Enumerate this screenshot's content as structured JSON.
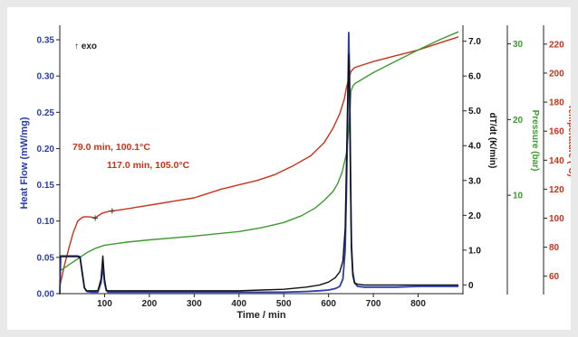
{
  "chart_data": {
    "type": "line",
    "title": "",
    "exo_label": "↑ exo",
    "xlabel": "Time / min",
    "xlim": [
      0,
      900
    ],
    "x_ticks": [
      100,
      200,
      300,
      400,
      500,
      600,
      700,
      800
    ],
    "axes": {
      "heat_flow": {
        "label": "Heat Flow (mW/mg)",
        "color": "#2a3ea8",
        "range": [
          0,
          0.36
        ],
        "ticks": [
          "0.00",
          "0.05",
          "0.10",
          "0.15",
          "0.20",
          "0.25",
          "0.30",
          "0.35"
        ]
      },
      "dtdt": {
        "label": "dT/dt (K/min)",
        "color": "#111111",
        "range": [
          -0.25,
          7.25
        ],
        "ticks": [
          "0",
          "1.0",
          "2.0",
          "3.0",
          "4.0",
          "5.0",
          "6.0",
          "7.0"
        ]
      },
      "pressure": {
        "label": "Pressure (bar)",
        "color": "#3d9a2f",
        "range": [
          -3,
          31.5
        ],
        "ticks": [
          "10",
          "20",
          "30"
        ]
      },
      "temperature": {
        "label": "Temperature (°C)",
        "color": "#c8321a",
        "range": [
          48,
          228
        ],
        "ticks": [
          "60",
          "80",
          "100",
          "120",
          "140",
          "160",
          "180",
          "200",
          "220"
        ]
      }
    },
    "series": [
      {
        "axis": "temperature",
        "color": "#c8321a",
        "x": [
          0,
          10,
          20,
          30,
          40,
          50,
          55,
          60,
          70,
          79,
          85,
          95,
          110,
          117,
          140,
          180,
          220,
          260,
          300,
          315,
          330,
          360,
          400,
          440,
          480,
          520,
          560,
          590,
          610,
          625,
          635,
          640,
          645,
          648,
          650,
          655,
          660,
          700,
          750,
          800,
          850,
          890
        ],
        "y": [
          53,
          67,
          79,
          90,
          98,
          100.5,
          101,
          101,
          100.8,
          100.1,
          101.5,
          103.5,
          104.8,
          105,
          106,
          108,
          110,
          112,
          114,
          115.5,
          117,
          120,
          123,
          126,
          130,
          136,
          143,
          152,
          162,
          172,
          182,
          190,
          196,
          199,
          201,
          203,
          204,
          208,
          212,
          216,
          221,
          225
        ]
      },
      {
        "axis": "pressure",
        "color": "#3d9a2f",
        "x": [
          0,
          20,
          40,
          60,
          80,
          100,
          150,
          200,
          300,
          400,
          450,
          500,
          540,
          570,
          590,
          610,
          620,
          630,
          640,
          645,
          648,
          650,
          655,
          660,
          700,
          750,
          800,
          850,
          890
        ],
        "y": [
          0,
          0.8,
          1.6,
          2.4,
          3,
          3.4,
          3.8,
          4.1,
          4.6,
          5.2,
          5.7,
          6.4,
          7.3,
          8.3,
          9.3,
          10.5,
          11.5,
          13,
          15.5,
          18.5,
          21.5,
          23.8,
          24.5,
          24.8,
          26.2,
          27.7,
          29.2,
          30.6,
          31.6
        ]
      },
      {
        "axis": "heat_flow",
        "color": "#2a3ea8",
        "x": [
          0,
          2,
          5,
          10,
          20,
          30,
          40,
          45,
          50,
          55,
          60,
          70,
          85,
          92,
          96,
          100,
          104,
          108,
          115,
          150,
          200,
          300,
          400,
          500,
          550,
          580,
          600,
          615,
          625,
          632,
          637,
          640,
          643,
          645,
          647,
          649,
          651,
          654,
          658,
          665,
          680,
          700,
          750,
          800,
          850,
          890
        ],
        "y": [
          0,
          0.052,
          0.052,
          0.052,
          0.052,
          0.052,
          0.052,
          0.051,
          0.03,
          0.008,
          0.003,
          0.002,
          0.002,
          0.015,
          0.038,
          0.015,
          0.004,
          0.002,
          0.002,
          0.002,
          0.002,
          0.002,
          0.002,
          0.002,
          0.003,
          0.004,
          0.005,
          0.007,
          0.01,
          0.02,
          0.06,
          0.14,
          0.25,
          0.36,
          0.3,
          0.17,
          0.07,
          0.03,
          0.015,
          0.01,
          0.009,
          0.009,
          0.009,
          0.01,
          0.01,
          0.01
        ]
      },
      {
        "axis": "heat_flow",
        "color": "#111111",
        "x": [
          0,
          5,
          10,
          30,
          40,
          45,
          50,
          55,
          60,
          70,
          85,
          92,
          96,
          100,
          104,
          108,
          115,
          150,
          200,
          300,
          400,
          450,
          500,
          550,
          580,
          600,
          615,
          625,
          632,
          637,
          640,
          643,
          645,
          647,
          649,
          651,
          654,
          658,
          665,
          680,
          700,
          750,
          800,
          850,
          890
        ],
        "y": [
          0.051,
          0.051,
          0.051,
          0.051,
          0.051,
          0.05,
          0.028,
          0.008,
          0.004,
          0.004,
          0.004,
          0.02,
          0.052,
          0.02,
          0.005,
          0.004,
          0.004,
          0.004,
          0.004,
          0.004,
          0.004,
          0.005,
          0.006,
          0.009,
          0.012,
          0.016,
          0.022,
          0.03,
          0.045,
          0.09,
          0.18,
          0.28,
          0.33,
          0.27,
          0.15,
          0.06,
          0.025,
          0.015,
          0.013,
          0.012,
          0.012,
          0.012,
          0.012,
          0.012,
          0.012
        ]
      }
    ],
    "annotations": [
      {
        "text": "79.0 min, 100.1°C",
        "x": 79,
        "y": 100.1,
        "axis": "temperature"
      },
      {
        "text": "117.0 min, 105.0°C",
        "x": 117,
        "y": 105.0,
        "axis": "temperature"
      }
    ]
  }
}
